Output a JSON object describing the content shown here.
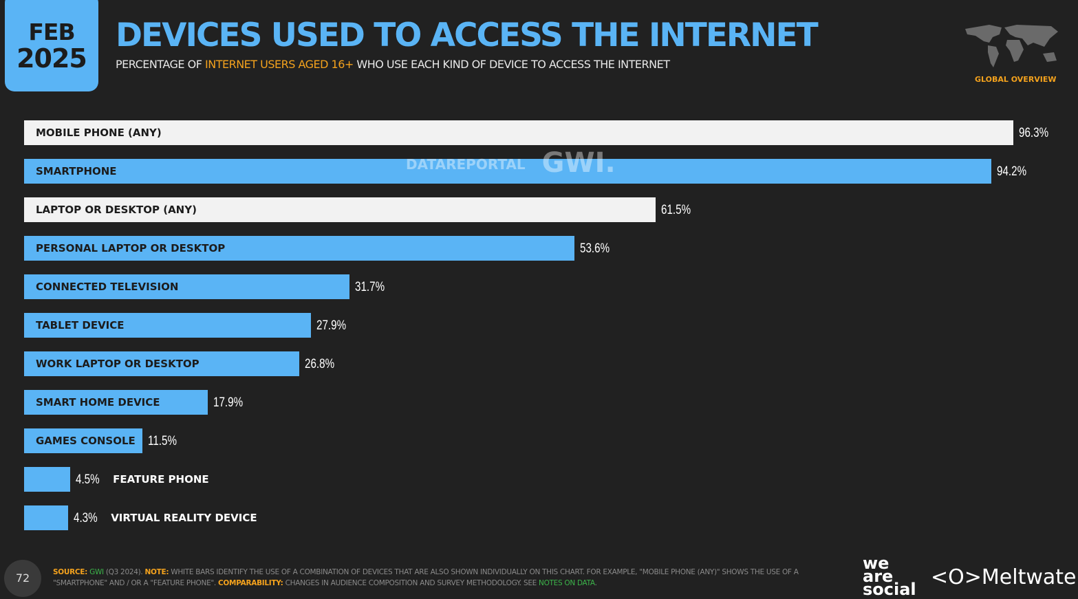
{
  "header": {
    "month": "FEB",
    "year": "2025",
    "title": "DEVICES USED TO ACCESS THE INTERNET",
    "subtitle_pre": "PERCENTAGE OF ",
    "subtitle_highlight": "INTERNET USERS AGED 16+",
    "subtitle_post": " WHO USE EACH KIND OF DEVICE TO ACCESS THE INTERNET",
    "region": "GLOBAL OVERVIEW"
  },
  "watermark": {
    "dataportal": "DATAREPORTAL",
    "gwi": "GWI."
  },
  "colors": {
    "background": "#212121",
    "blue_bar": "#5ab4f5",
    "white_bar": "#f2f2f2",
    "accent": "#f4a21d"
  },
  "chart_data": {
    "type": "bar",
    "orientation": "horizontal",
    "unit": "%",
    "xlim": [
      0,
      100
    ],
    "categories": [
      "MOBILE PHONE (ANY)",
      "SMARTPHONE",
      "LAPTOP OR DESKTOP (ANY)",
      "PERSONAL LAPTOP OR DESKTOP",
      "CONNECTED TELEVISION",
      "TABLET DEVICE",
      "WORK LAPTOP OR DESKTOP",
      "SMART HOME DEVICE",
      "GAMES CONSOLE",
      "FEATURE PHONE",
      "VIRTUAL REALITY DEVICE"
    ],
    "values": [
      96.3,
      94.2,
      61.5,
      53.6,
      31.7,
      27.9,
      26.8,
      17.9,
      11.5,
      4.5,
      4.3
    ],
    "labels": [
      "96.3%",
      "94.2%",
      "61.5%",
      "53.6%",
      "31.7%",
      "27.9%",
      "26.8%",
      "17.9%",
      "11.5%",
      "4.5%",
      "4.3%"
    ],
    "bar_colors": [
      "white",
      "blue",
      "white",
      "blue",
      "blue",
      "blue",
      "blue",
      "blue",
      "blue",
      "blue",
      "blue"
    ]
  },
  "footer": {
    "page": "72",
    "source_label": "SOURCE:",
    "source": "GWI",
    "source_detail": " (Q3 2024). ",
    "note_label": "NOTE:",
    "note": " WHITE BARS IDENTIFY THE USE OF A COMBINATION OF DEVICES THAT ARE ALSO SHOWN INDIVIDUALLY ON THIS CHART. FOR EXAMPLE, \"MOBILE PHONE (ANY)\" SHOWS THE USE OF A \"SMARTPHONE\" AND / OR A \"FEATURE PHONE\". ",
    "comp_label": "COMPARABILITY:",
    "comp": " CHANGES IN AUDIENCE COMPOSITION AND SURVEY METHODOLOGY. SEE ",
    "notes_link": "NOTES ON DATA",
    "end": "."
  },
  "logos": {
    "we_are_social": "we are social",
    "meltwater": "Meltwater"
  }
}
